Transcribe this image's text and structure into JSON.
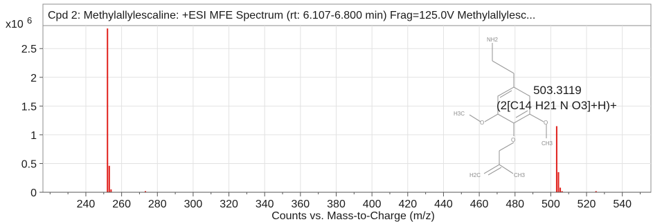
{
  "chart_data": {
    "type": "bar",
    "title": "Cpd 2: Methylallylescaline: +ESI MFE Spectrum (rt: 6.107-6.800 min) Frag=125.0V Methylallylesc...",
    "xlabel": "Counts vs. Mass-to-Charge (m/z)",
    "ylabel": "",
    "y_multiplier": "x10",
    "y_exponent": "6",
    "xlim": [
      216,
      556
    ],
    "ylim": [
      0,
      2.9
    ],
    "x_ticks": [
      240,
      260,
      280,
      300,
      320,
      340,
      360,
      380,
      400,
      420,
      440,
      460,
      480,
      500,
      520,
      540
    ],
    "y_ticks": [
      0,
      0.5,
      1,
      1.5,
      2,
      2.5
    ],
    "y_tick_labels": [
      "0",
      "0.5",
      "1",
      "1.5",
      "2",
      "2.5"
    ],
    "grid": true,
    "bar_color": "#e0201b",
    "peaks": [
      {
        "x": 252.1,
        "y": 2.85
      },
      {
        "x": 253.1,
        "y": 0.46
      },
      {
        "x": 254.1,
        "y": 0.05
      },
      {
        "x": 273.3,
        "y": 0.02
      },
      {
        "x": 503.3,
        "y": 1.15
      },
      {
        "x": 504.3,
        "y": 0.35
      },
      {
        "x": 505.3,
        "y": 0.08
      },
      {
        "x": 506.3,
        "y": 0.02
      },
      {
        "x": 525.3,
        "y": 0.02
      }
    ],
    "annotations": [
      {
        "x": 503.3,
        "line1": "503.3119",
        "line2": "(2[C14 H21 N O3]+H)+"
      }
    ]
  },
  "structure": {
    "labels": [
      "NH2",
      "H3C",
      "O",
      "O",
      "CH3",
      "O",
      "H2C",
      "CH3"
    ]
  }
}
